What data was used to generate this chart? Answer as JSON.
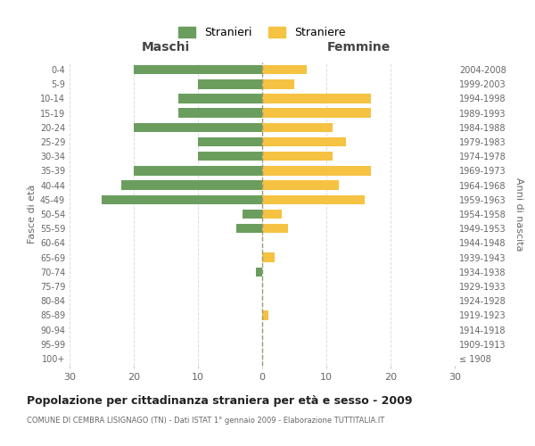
{
  "age_groups": [
    "100+",
    "95-99",
    "90-94",
    "85-89",
    "80-84",
    "75-79",
    "70-74",
    "65-69",
    "60-64",
    "55-59",
    "50-54",
    "45-49",
    "40-44",
    "35-39",
    "30-34",
    "25-29",
    "20-24",
    "15-19",
    "10-14",
    "5-9",
    "0-4"
  ],
  "birth_years": [
    "≤ 1908",
    "1909-1913",
    "1914-1918",
    "1919-1923",
    "1924-1928",
    "1929-1933",
    "1934-1938",
    "1939-1943",
    "1944-1948",
    "1949-1953",
    "1954-1958",
    "1959-1963",
    "1964-1968",
    "1969-1973",
    "1974-1978",
    "1979-1983",
    "1984-1988",
    "1989-1993",
    "1994-1998",
    "1999-2003",
    "2004-2008"
  ],
  "maschi": [
    0,
    0,
    0,
    0,
    0,
    0,
    1,
    0,
    0,
    4,
    3,
    25,
    22,
    20,
    10,
    10,
    20,
    13,
    13,
    10,
    20
  ],
  "femmine": [
    0,
    0,
    0,
    1,
    0,
    0,
    0,
    2,
    0,
    4,
    3,
    16,
    12,
    17,
    11,
    13,
    11,
    17,
    17,
    5,
    7
  ],
  "male_color": "#6b9e5e",
  "female_color": "#f5c242",
  "title": "Popolazione per cittadinanza straniera per età e sesso - 2009",
  "subtitle": "COMUNE DI CEMBRA LISIGNAGO (TN) - Dati ISTAT 1° gennaio 2009 - Elaborazione TUTTITALIA.IT",
  "ylabel_left": "Fasce di età",
  "ylabel_right": "Anni di nascita",
  "xlabel_left": "Maschi",
  "xlabel_right": "Femmine",
  "legend_male": "Stranieri",
  "legend_female": "Straniere",
  "xlim": 30,
  "background_color": "#ffffff",
  "grid_color": "#dddddd"
}
